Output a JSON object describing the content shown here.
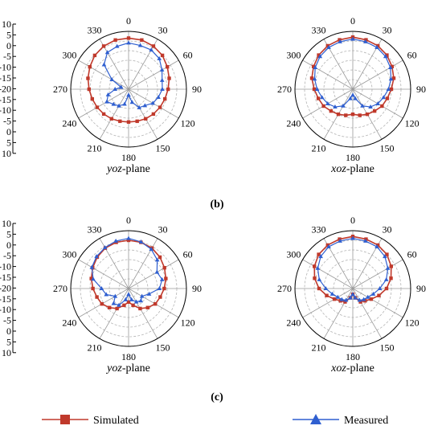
{
  "figure": {
    "panel_labels": [
      "(b)",
      "(c)"
    ],
    "legend": [
      {
        "label": "Simulated",
        "color": "#c0392b",
        "marker": "square"
      },
      {
        "label": "Measured",
        "color": "#2f5fd0",
        "marker": "triangle"
      }
    ],
    "colors": {
      "simulated": "#c0392b",
      "measured": "#2f5fd0",
      "grid_solid": "#9a9a9a",
      "grid_dash": "#b5b5b5"
    }
  },
  "chart_data": [
    {
      "type": "polar-line",
      "panel": "(b)",
      "plane_label": [
        "yoz",
        "-plane"
      ],
      "angle_ticks": [
        "0",
        "30",
        "60",
        "90",
        "120",
        "150",
        "180",
        "210",
        "240",
        "270",
        "300",
        "330"
      ],
      "radial_ticks": [
        "10",
        "5",
        "0",
        "-5",
        "-10",
        "-15",
        "-20",
        "-15",
        "-10",
        "-5",
        "0",
        "5",
        "10"
      ],
      "rlim": [
        -20,
        10
      ],
      "angles_deg": [
        0,
        15,
        30,
        45,
        60,
        75,
        90,
        105,
        120,
        135,
        150,
        165,
        180,
        195,
        210,
        225,
        240,
        255,
        270,
        285,
        300,
        315,
        330,
        345
      ],
      "series": [
        {
          "name": "Simulated",
          "values": [
            6.5,
            6.4,
            5.8,
            4.8,
            3.2,
            1.8,
            0.5,
            -0.5,
            -1.2,
            -1.8,
            -2.3,
            -2.8,
            -3,
            -2.8,
            -2.3,
            -1.8,
            -1.2,
            -0.5,
            0.5,
            1.8,
            3.2,
            4.8,
            5.8,
            6.4
          ]
        },
        {
          "name": "Measured",
          "values": [
            4,
            3.5,
            3.5,
            2.5,
            0,
            -2,
            -2.5,
            -4,
            -5.5,
            -8,
            -9,
            -13,
            -17,
            -12,
            -10,
            -9,
            -7,
            -9,
            -13,
            -16,
            -10,
            -2,
            2,
            3
          ]
        }
      ]
    },
    {
      "type": "polar-line",
      "panel": "(b)",
      "plane_label": [
        "xoz",
        "-plane"
      ],
      "angle_ticks": [
        "0",
        "30",
        "60",
        "90",
        "120",
        "150",
        "180",
        "210",
        "240",
        "270",
        "300",
        "330"
      ],
      "radial_ticks": [],
      "rlim": [
        -20,
        10
      ],
      "angles_deg": [
        0,
        15,
        30,
        45,
        60,
        75,
        90,
        105,
        120,
        135,
        150,
        165,
        180,
        195,
        210,
        225,
        240,
        255,
        270,
        285,
        300,
        315,
        330,
        345
      ],
      "series": [
        {
          "name": "Simulated",
          "values": [
            7,
            6.5,
            6,
            5,
            3.5,
            2,
            0,
            -1.5,
            -2.5,
            -4,
            -5,
            -6,
            -7,
            -6,
            -5,
            -4,
            -2.5,
            -1.5,
            0,
            2,
            3.5,
            5,
            6,
            6.5
          ]
        },
        {
          "name": "Measured",
          "values": [
            6,
            5.5,
            5,
            4,
            2.5,
            0.5,
            -1.5,
            -3.5,
            -5,
            -7,
            -10,
            -15,
            -17,
            -15,
            -10,
            -7,
            -5,
            -3.5,
            -1.5,
            0.5,
            2.5,
            4,
            5,
            5.5
          ]
        }
      ]
    },
    {
      "type": "polar-line",
      "panel": "(c)",
      "plane_label": [
        "yoz",
        "-plane"
      ],
      "angle_ticks": [
        "0",
        "30",
        "60",
        "90",
        "120",
        "150",
        "180",
        "210",
        "240",
        "270",
        "300",
        "330"
      ],
      "radial_ticks": [
        "10",
        "5",
        "0",
        "-5",
        "-10",
        "-15",
        "-20",
        "-15",
        "-10",
        "-5",
        "0",
        "5",
        "10"
      ],
      "rlim": [
        -20,
        10
      ],
      "angles_deg": [
        0,
        15,
        30,
        45,
        60,
        75,
        90,
        105,
        120,
        135,
        150,
        165,
        180,
        195,
        210,
        225,
        240,
        255,
        270,
        285,
        300,
        315,
        330,
        345
      ],
      "series": [
        {
          "name": "Simulated",
          "values": [
            5,
            4.8,
            4.2,
            3,
            1.5,
            0,
            -1.5,
            -3,
            -4,
            -6,
            -8,
            -11,
            -13,
            -11,
            -8,
            -6,
            -4,
            -3,
            -1.5,
            0,
            1.5,
            3,
            4.2,
            4.8
          ]
        },
        {
          "name": "Measured",
          "values": [
            6,
            5,
            3.5,
            1,
            -3,
            -2,
            -4,
            -9,
            -12,
            -11,
            -12,
            -14,
            -17,
            -14,
            -10,
            -9,
            -12,
            -8,
            -6,
            -1,
            2,
            3.5,
            4.5,
            5.5
          ]
        }
      ]
    },
    {
      "type": "polar-line",
      "panel": "(c)",
      "plane_label": [
        "xoz",
        "-plane"
      ],
      "angle_ticks": [
        "0",
        "30",
        "60",
        "90",
        "120",
        "150",
        "180",
        "210",
        "240",
        "270",
        "300",
        "330"
      ],
      "radial_ticks": [],
      "rlim": [
        -20,
        10
      ],
      "angles_deg": [
        0,
        15,
        30,
        45,
        60,
        75,
        90,
        105,
        120,
        135,
        150,
        165,
        180,
        195,
        210,
        225,
        240,
        255,
        270,
        285,
        300,
        315,
        330,
        345
      ],
      "series": [
        {
          "name": "Simulated",
          "values": [
            7,
            6.5,
            6,
            5,
            3,
            0.5,
            -2.5,
            -6,
            -9,
            -11,
            -12,
            -15,
            -17,
            -15,
            -12,
            -11,
            -9,
            -6,
            -2.5,
            0.5,
            3,
            5,
            6,
            6.5
          ]
        },
        {
          "name": "Measured",
          "values": [
            6,
            5.5,
            5,
            3.5,
            1,
            -2,
            -6,
            -9,
            -11,
            -12,
            -13,
            -15,
            -17,
            -15,
            -13,
            -12,
            -11,
            -9,
            -6,
            -2,
            1,
            3.5,
            5,
            5.5
          ]
        }
      ]
    }
  ]
}
